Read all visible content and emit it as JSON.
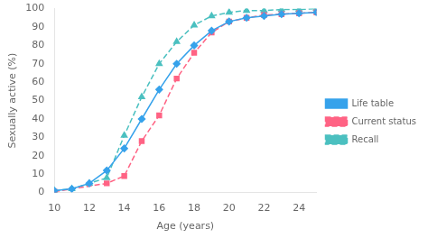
{
  "chart_data": {
    "type": "line",
    "xlabel": "Age (years)",
    "ylabel": "Sexually active (%)",
    "series": [
      {
        "name": "Life table",
        "marker": "diamond",
        "line_style": "solid",
        "x": [
          10,
          11,
          12,
          13,
          14,
          15,
          16,
          17,
          18,
          19,
          20,
          21,
          22,
          23,
          24,
          25
        ],
        "values": [
          1,
          2,
          5,
          12,
          24,
          40,
          56,
          70,
          80,
          88,
          93,
          95,
          96,
          97,
          97.5,
          98
        ]
      },
      {
        "name": "Current status",
        "marker": "square",
        "line_style": "dashed",
        "x": [
          10,
          13,
          14,
          15,
          16,
          17,
          18,
          19,
          20,
          21,
          22,
          23,
          24,
          25
        ],
        "values": [
          0.5,
          5,
          9,
          28,
          42,
          62,
          76,
          87,
          93,
          95,
          96.5,
          97,
          97.5,
          98
        ]
      },
      {
        "name": "Recall",
        "marker": "triangle",
        "line_style": "dashed",
        "x": [
          10,
          11,
          12,
          13,
          14,
          15,
          16,
          17,
          18,
          19,
          20,
          21,
          22,
          23,
          24,
          25
        ],
        "values": [
          1,
          2,
          5,
          8,
          31,
          52,
          70,
          82,
          91,
          96,
          98,
          99,
          99,
          99.5,
          99.5,
          100
        ]
      }
    ],
    "xlim": [
      10,
      25
    ],
    "ylim": [
      0,
      100
    ],
    "xticks": [
      10,
      12,
      14,
      16,
      18,
      20,
      22,
      24
    ],
    "yticks": [
      0,
      10,
      20,
      30,
      40,
      50,
      60,
      70,
      80,
      90,
      100
    ],
    "grid": false,
    "legend": "right"
  }
}
